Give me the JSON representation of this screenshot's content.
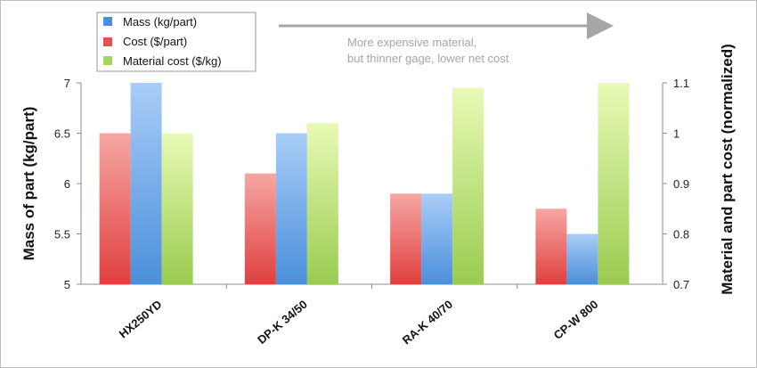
{
  "chart_data": {
    "type": "bar",
    "categories": [
      "HX250YD",
      "DP-K 34/50",
      "RA-K 40/70",
      "CP-W 800"
    ],
    "series": [
      {
        "name": "Mass (kg/part)",
        "axis": "left",
        "values": [
          7.0,
          6.5,
          5.9,
          5.5
        ],
        "color": "#4a8fdb"
      },
      {
        "name": "Cost ($/part)",
        "axis": "right",
        "values": [
          1.0,
          0.92,
          0.88,
          0.85
        ],
        "color": "#e8504f"
      },
      {
        "name": "Material cost ($/kg)",
        "axis": "right",
        "values": [
          1.0,
          1.02,
          1.09,
          1.1
        ],
        "color": "#a4d65e"
      }
    ],
    "ylabel": "Mass of part (kg/part)",
    "y2label": "Material and part cost (normalized)",
    "ylim": [
      5,
      7
    ],
    "y2lim": [
      0.7,
      1.1
    ],
    "yticks": [
      "5",
      "5.5",
      "6",
      "6.5",
      "7"
    ],
    "y2ticks": [
      "0.7",
      "0.8",
      "0.9",
      "1",
      "1.1"
    ],
    "legend_position": "top-left",
    "annotation": {
      "lines": [
        "More expensive material,",
        "but thinner gage, lower net cost"
      ]
    }
  }
}
